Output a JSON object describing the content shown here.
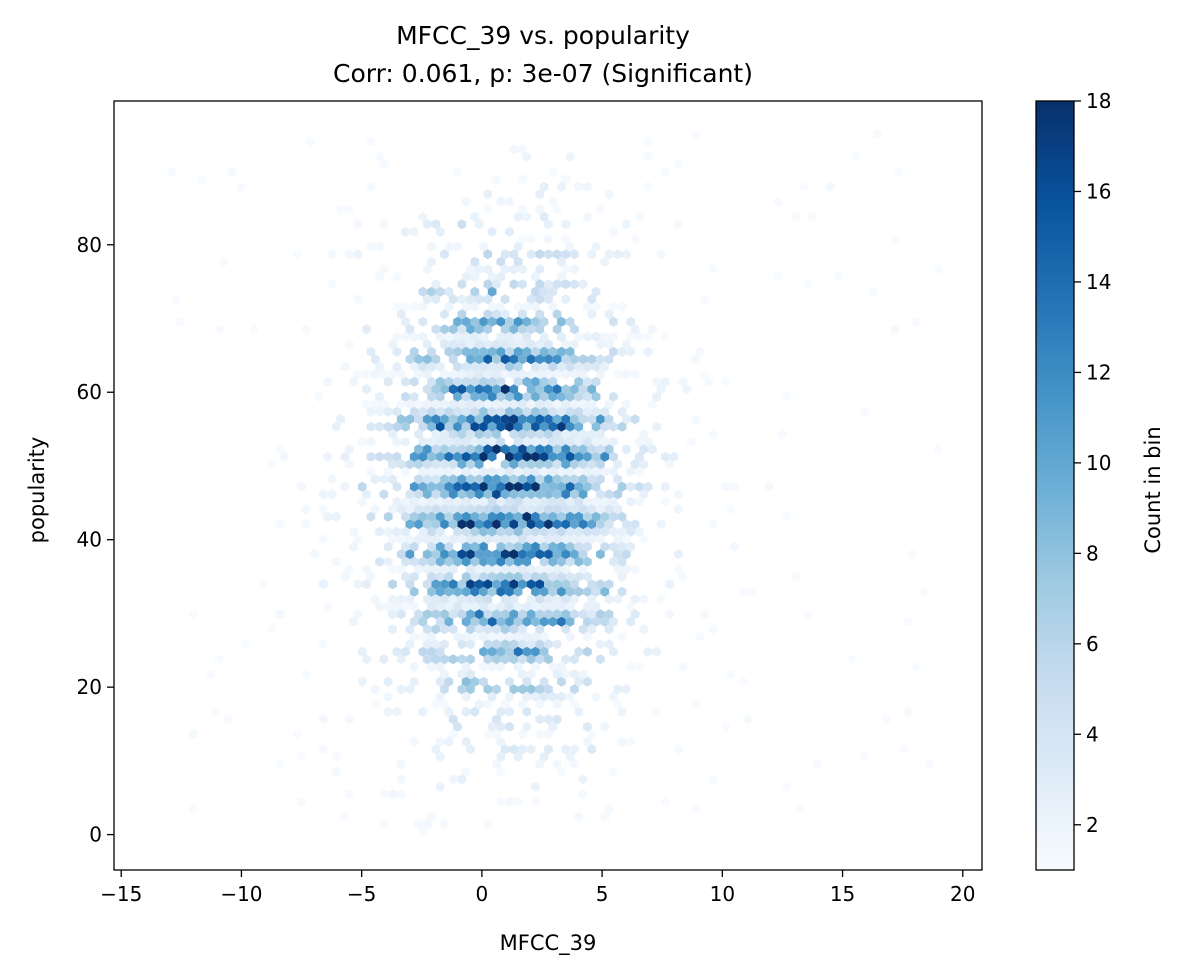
{
  "chart_data": {
    "type": "hexbin",
    "title": "MFCC_39 vs. popularity",
    "subtitle": "Corr: 0.061, p: 3e-07 (Significant)",
    "xlabel": "MFCC_39",
    "ylabel": "popularity",
    "xlim": [
      -15.3,
      20.8
    ],
    "ylim": [
      -4.8,
      99.5
    ],
    "x_ticks": [
      -15,
      -10,
      -5,
      0,
      5,
      10,
      15,
      20
    ],
    "x_tick_labels": [
      "−15",
      "−10",
      "−5",
      "0",
      "5",
      "10",
      "15",
      "20"
    ],
    "y_ticks": [
      0,
      20,
      40,
      60,
      80
    ],
    "y_tick_labels": [
      "0",
      "20",
      "40",
      "60",
      "80"
    ],
    "grid": false,
    "colormap": "Blues",
    "colorbar": {
      "label": "Count in bin",
      "min": 1,
      "max": 18,
      "ticks": [
        2,
        4,
        6,
        8,
        10,
        12,
        14,
        16,
        18
      ],
      "tick_labels": [
        "2",
        "4",
        "6",
        "8",
        "10",
        "12",
        "14",
        "16",
        "18"
      ]
    },
    "distribution": {
      "x_center": 1.0,
      "y_center": 47,
      "x_range_observed": [
        -13.8,
        19.0
      ],
      "y_range_observed": [
        0,
        95
      ],
      "peak_count": 18
    }
  }
}
